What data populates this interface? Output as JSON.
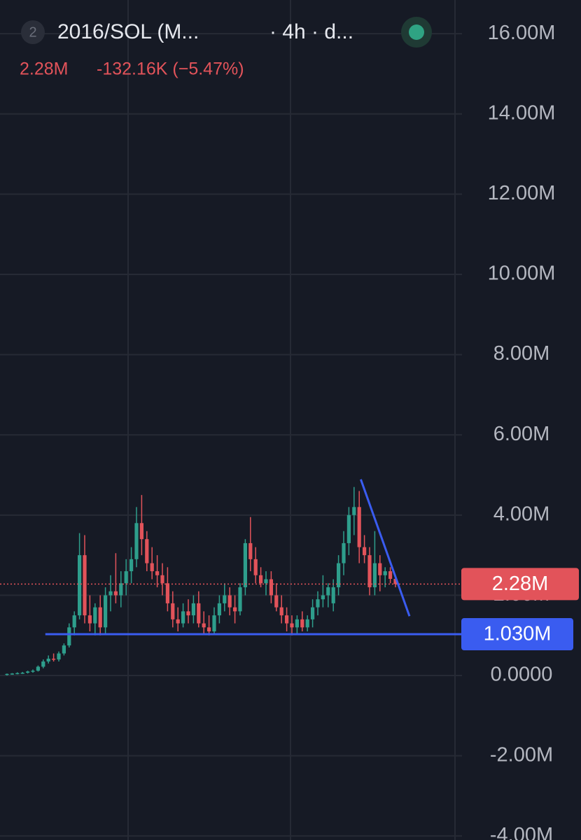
{
  "header": {
    "badge": "2",
    "symbol": "2016/SOL (M...",
    "interval": "· 4h · d...",
    "last": "2.28M",
    "change": "-132.16K (−5.47%)"
  },
  "chart_data": {
    "type": "candlestick",
    "up_color": "#2e9e8c",
    "down_color": "#e2535a",
    "ylim": [
      -4.1,
      16.84
    ],
    "yticks": [
      {
        "value": 16,
        "label": "16.00M"
      },
      {
        "value": 14,
        "label": "14.00M"
      },
      {
        "value": 12,
        "label": "12.00M"
      },
      {
        "value": 10,
        "label": "10.00M"
      },
      {
        "value": 8,
        "label": "8.00M"
      },
      {
        "value": 6,
        "label": "6.00M"
      },
      {
        "value": 4,
        "label": "4.00M"
      },
      {
        "value": 2,
        "label": "2.00M"
      },
      {
        "value": 0,
        "label": "0.0000"
      },
      {
        "value": -2,
        "label": "-2.00M"
      },
      {
        "value": -4,
        "label": "-4.00M"
      }
    ],
    "grid": true,
    "candles": [
      [
        0.02,
        0.05,
        0,
        0.04
      ],
      [
        0.04,
        0.06,
        0.02,
        0.05
      ],
      [
        0.05,
        0.08,
        0.03,
        0.06
      ],
      [
        0.06,
        0.09,
        0.04,
        0.07
      ],
      [
        0.07,
        0.12,
        0.05,
        0.1
      ],
      [
        0.1,
        0.15,
        0.07,
        0.12
      ],
      [
        0.12,
        0.25,
        0.1,
        0.22
      ],
      [
        0.22,
        0.4,
        0.18,
        0.35
      ],
      [
        0.35,
        0.5,
        0.3,
        0.42
      ],
      [
        0.42,
        0.55,
        0.35,
        0.4
      ],
      [
        0.4,
        0.6,
        0.35,
        0.55
      ],
      [
        0.55,
        0.8,
        0.5,
        0.75
      ],
      [
        0.75,
        1.3,
        0.7,
        1.2
      ],
      [
        1.2,
        1.6,
        1,
        1.5
      ],
      [
        1.5,
        3.55,
        1.4,
        3
      ],
      [
        3,
        3.5,
        1.3,
        1.5
      ],
      [
        1.5,
        2,
        1.1,
        1.3
      ],
      [
        1.3,
        1.8,
        1,
        1.7
      ],
      [
        1.7,
        2,
        1,
        1.2
      ],
      [
        1.2,
        2.2,
        1.05,
        2
      ],
      [
        2,
        2.5,
        1.6,
        2.1
      ],
      [
        2.1,
        3.05,
        1.8,
        2
      ],
      [
        2,
        2.6,
        1.7,
        2.3
      ],
      [
        2.3,
        2.9,
        2,
        2.6
      ],
      [
        2.6,
        3.2,
        2.3,
        2.9
      ],
      [
        2.9,
        4.2,
        2.7,
        3.8
      ],
      [
        3.8,
        4.5,
        3,
        3.4
      ],
      [
        3.4,
        3.6,
        2.6,
        2.8
      ],
      [
        2.8,
        3.2,
        2.4,
        2.6
      ],
      [
        2.6,
        3,
        2.2,
        2.5
      ],
      [
        2.5,
        2.8,
        2,
        2.3
      ],
      [
        2.3,
        2.7,
        1.6,
        1.8
      ],
      [
        1.8,
        2.1,
        1.2,
        1.4
      ],
      [
        1.4,
        1.7,
        1.1,
        1.3
      ],
      [
        1.3,
        1.8,
        1.2,
        1.6
      ],
      [
        1.6,
        1.9,
        1.3,
        1.5
      ],
      [
        1.5,
        2,
        1.3,
        1.8
      ],
      [
        1.8,
        2.1,
        1.2,
        1.3
      ],
      [
        1.3,
        1.6,
        1.05,
        1.2
      ],
      [
        1.2,
        1.5,
        1,
        1.1
      ],
      [
        1.1,
        1.7,
        1.05,
        1.5
      ],
      [
        1.5,
        2,
        1.3,
        1.8
      ],
      [
        1.8,
        2.3,
        1.6,
        2
      ],
      [
        2,
        2.2,
        1.5,
        1.7
      ],
      [
        1.7,
        2,
        1.3,
        1.6
      ],
      [
        1.6,
        2.3,
        1.5,
        2.2
      ],
      [
        2.2,
        3.4,
        2,
        3.3
      ],
      [
        3.3,
        3.95,
        2.6,
        2.9
      ],
      [
        2.9,
        3.2,
        2.3,
        2.5
      ],
      [
        2.5,
        2.7,
        2.2,
        2.3
      ],
      [
        2.3,
        2.6,
        2,
        2.4
      ],
      [
        2.4,
        2.6,
        1.8,
        2
      ],
      [
        2,
        2.3,
        1.6,
        1.7
      ],
      [
        1.7,
        2,
        1.3,
        1.5
      ],
      [
        1.5,
        1.7,
        1.1,
        1.3
      ],
      [
        1.3,
        1.5,
        1,
        1.2
      ],
      [
        1.2,
        1.5,
        1.05,
        1.4
      ],
      [
        1.4,
        1.6,
        1.1,
        1.2
      ],
      [
        1.2,
        1.5,
        1.1,
        1.4
      ],
      [
        1.4,
        1.9,
        1.2,
        1.7
      ],
      [
        1.7,
        2.1,
        1.5,
        1.9
      ],
      [
        1.9,
        2.5,
        1.7,
        2
      ],
      [
        2,
        2.3,
        1.7,
        2.2
      ],
      [
        1.8,
        2.4,
        1.6,
        2.2
      ],
      [
        2.2,
        3,
        2,
        2.8
      ],
      [
        2.8,
        3.6,
        2.5,
        3.3
      ],
      [
        3.3,
        4.2,
        3,
        4
      ],
      [
        4,
        4.7,
        3.5,
        4.2
      ],
      [
        4.2,
        4.6,
        2.8,
        3.2
      ],
      [
        3.2,
        3.5,
        2.8,
        3
      ],
      [
        3,
        3.2,
        2,
        2.2
      ],
      [
        2.2,
        3.6,
        2,
        2.8
      ],
      [
        2.8,
        3,
        2.1,
        2.5
      ],
      [
        2.5,
        2.7,
        2.2,
        2.6
      ],
      [
        2.6,
        2.7,
        2.3,
        2.41
      ],
      [
        2.41,
        2.5,
        2.2,
        2.28
      ]
    ],
    "price_line": {
      "value": 2.28,
      "label": "2.28M",
      "color": "#e2535a"
    },
    "support": {
      "value": 1.03,
      "label": "1.030M",
      "from": 7.4,
      "color": "#3a5cf0"
    },
    "trendline": {
      "x": [
        68.3,
        77.7
      ],
      "y": [
        4.89,
        1.48
      ],
      "color": "#3a5cf0"
    }
  }
}
